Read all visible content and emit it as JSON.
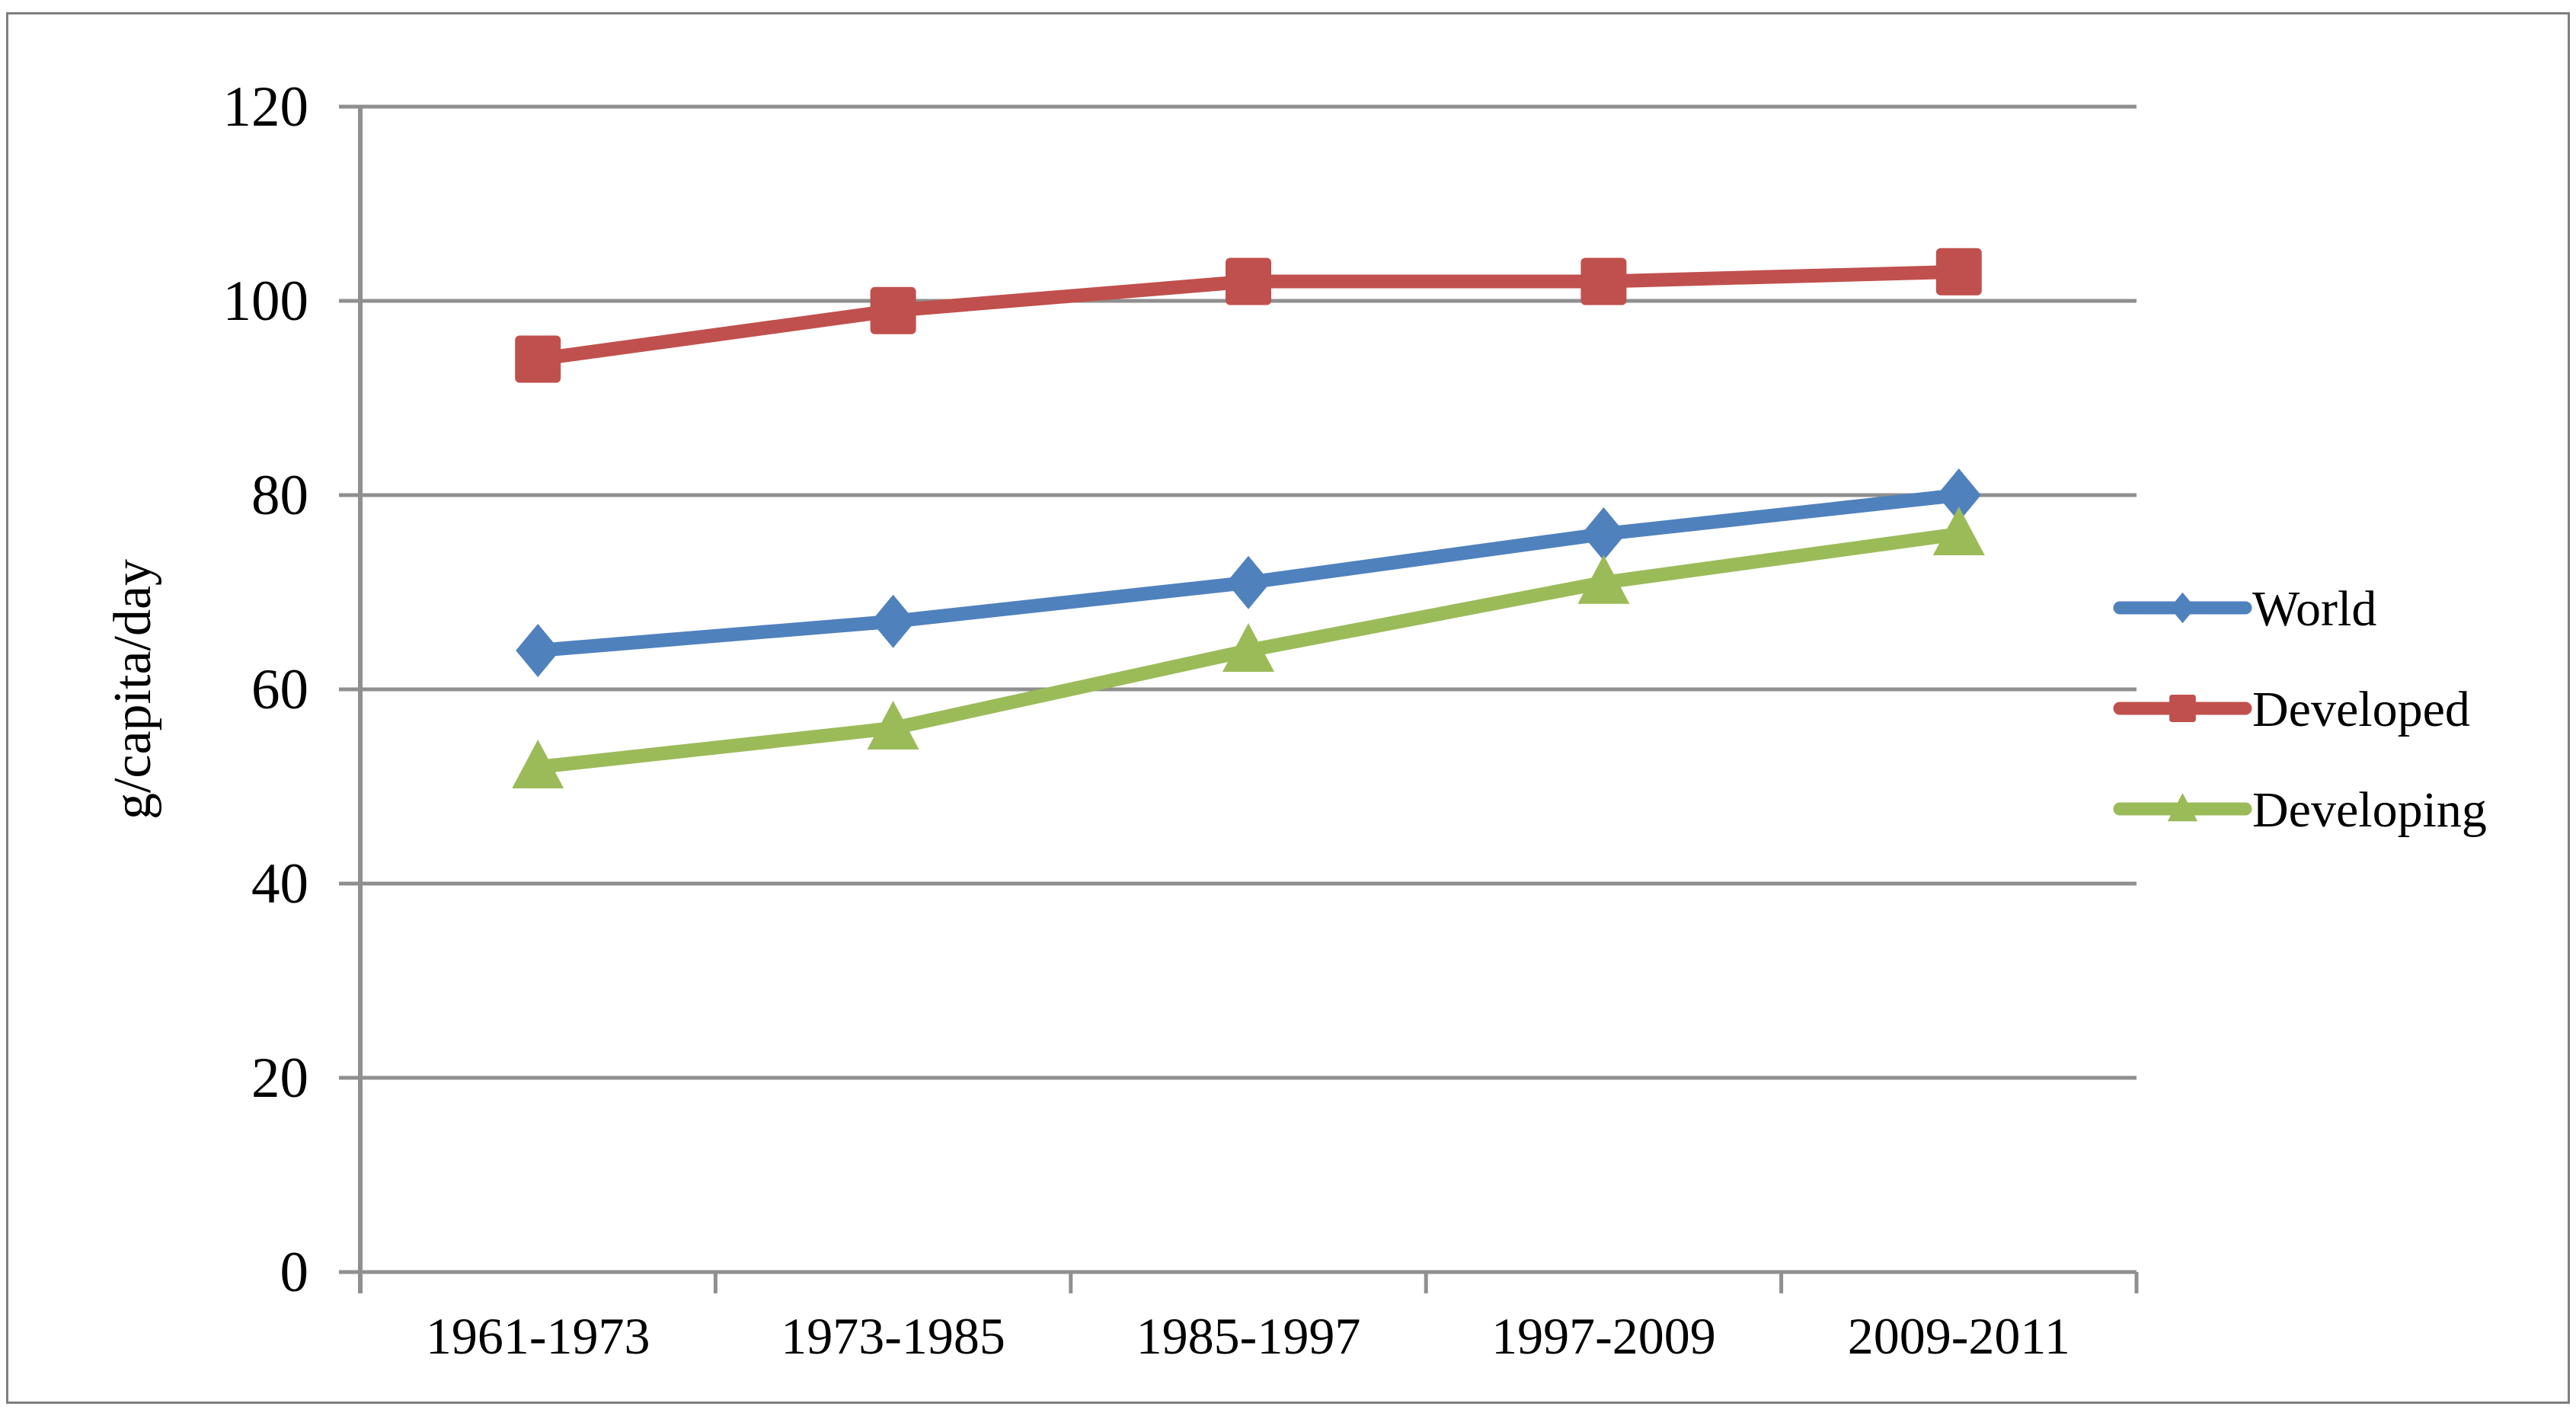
{
  "figure": {
    "background": "#ffffff",
    "border_color": "#7f7f7f"
  },
  "chart_data": {
    "type": "line",
    "title": "",
    "xlabel": "",
    "ylabel": "g/capita/day",
    "categories": [
      "1961-1973",
      "1973-1985",
      "1985-1997",
      "1997-2009",
      "2009-2011"
    ],
    "series": [
      {
        "name": "World",
        "marker": "diamond",
        "color": "#4F81BD",
        "values": [
          64,
          67,
          71,
          76,
          80
        ]
      },
      {
        "name": "Developed",
        "marker": "square",
        "color": "#C0504D",
        "values": [
          94,
          99,
          102,
          102,
          103
        ]
      },
      {
        "name": "Developing",
        "marker": "triangle",
        "color": "#9BBB59",
        "values": [
          52,
          56,
          64,
          71,
          76
        ]
      }
    ],
    "ylim": [
      0,
      120
    ],
    "yticks": [
      0,
      20,
      40,
      60,
      80,
      100,
      120
    ],
    "grid": "horizontal",
    "gridline_color": "#8F8F8F",
    "axis_color": "#8F8F8F",
    "text_color": "#000000",
    "legend_position": "right",
    "legend_labels": [
      "World",
      "Developed",
      "Developing"
    ]
  }
}
